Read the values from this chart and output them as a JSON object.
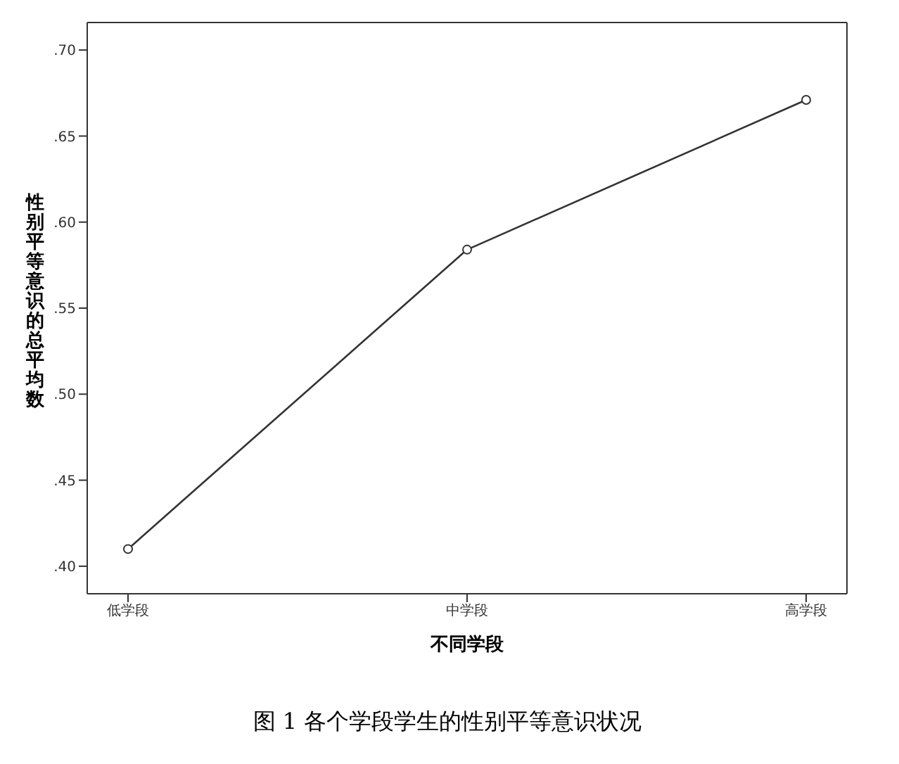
{
  "chart_data": {
    "type": "line",
    "xlabel": "不同学段",
    "ylabel": "性别平等意识的总平均数",
    "categories": [
      "低学段",
      "中学段",
      "高学段"
    ],
    "series": [
      {
        "color": "#333333",
        "values": [
          0.41,
          0.584,
          0.671
        ]
      }
    ],
    "ylim": [
      0.384,
      0.716
    ],
    "yticks": [
      {
        "value": 0.4,
        "label": ".40"
      },
      {
        "value": 0.45,
        "label": ".45"
      },
      {
        "value": 0.5,
        "label": ".50"
      },
      {
        "value": 0.55,
        "label": ".55"
      },
      {
        "value": 0.6,
        "label": ".60"
      },
      {
        "value": 0.65,
        "label": ".65"
      },
      {
        "value": 0.7,
        "label": ".70"
      }
    ],
    "marker": "circle",
    "line_style": "solid",
    "grid": false,
    "annotations": [
      "图 1 各个学段学生的性别平等意识状况"
    ]
  }
}
